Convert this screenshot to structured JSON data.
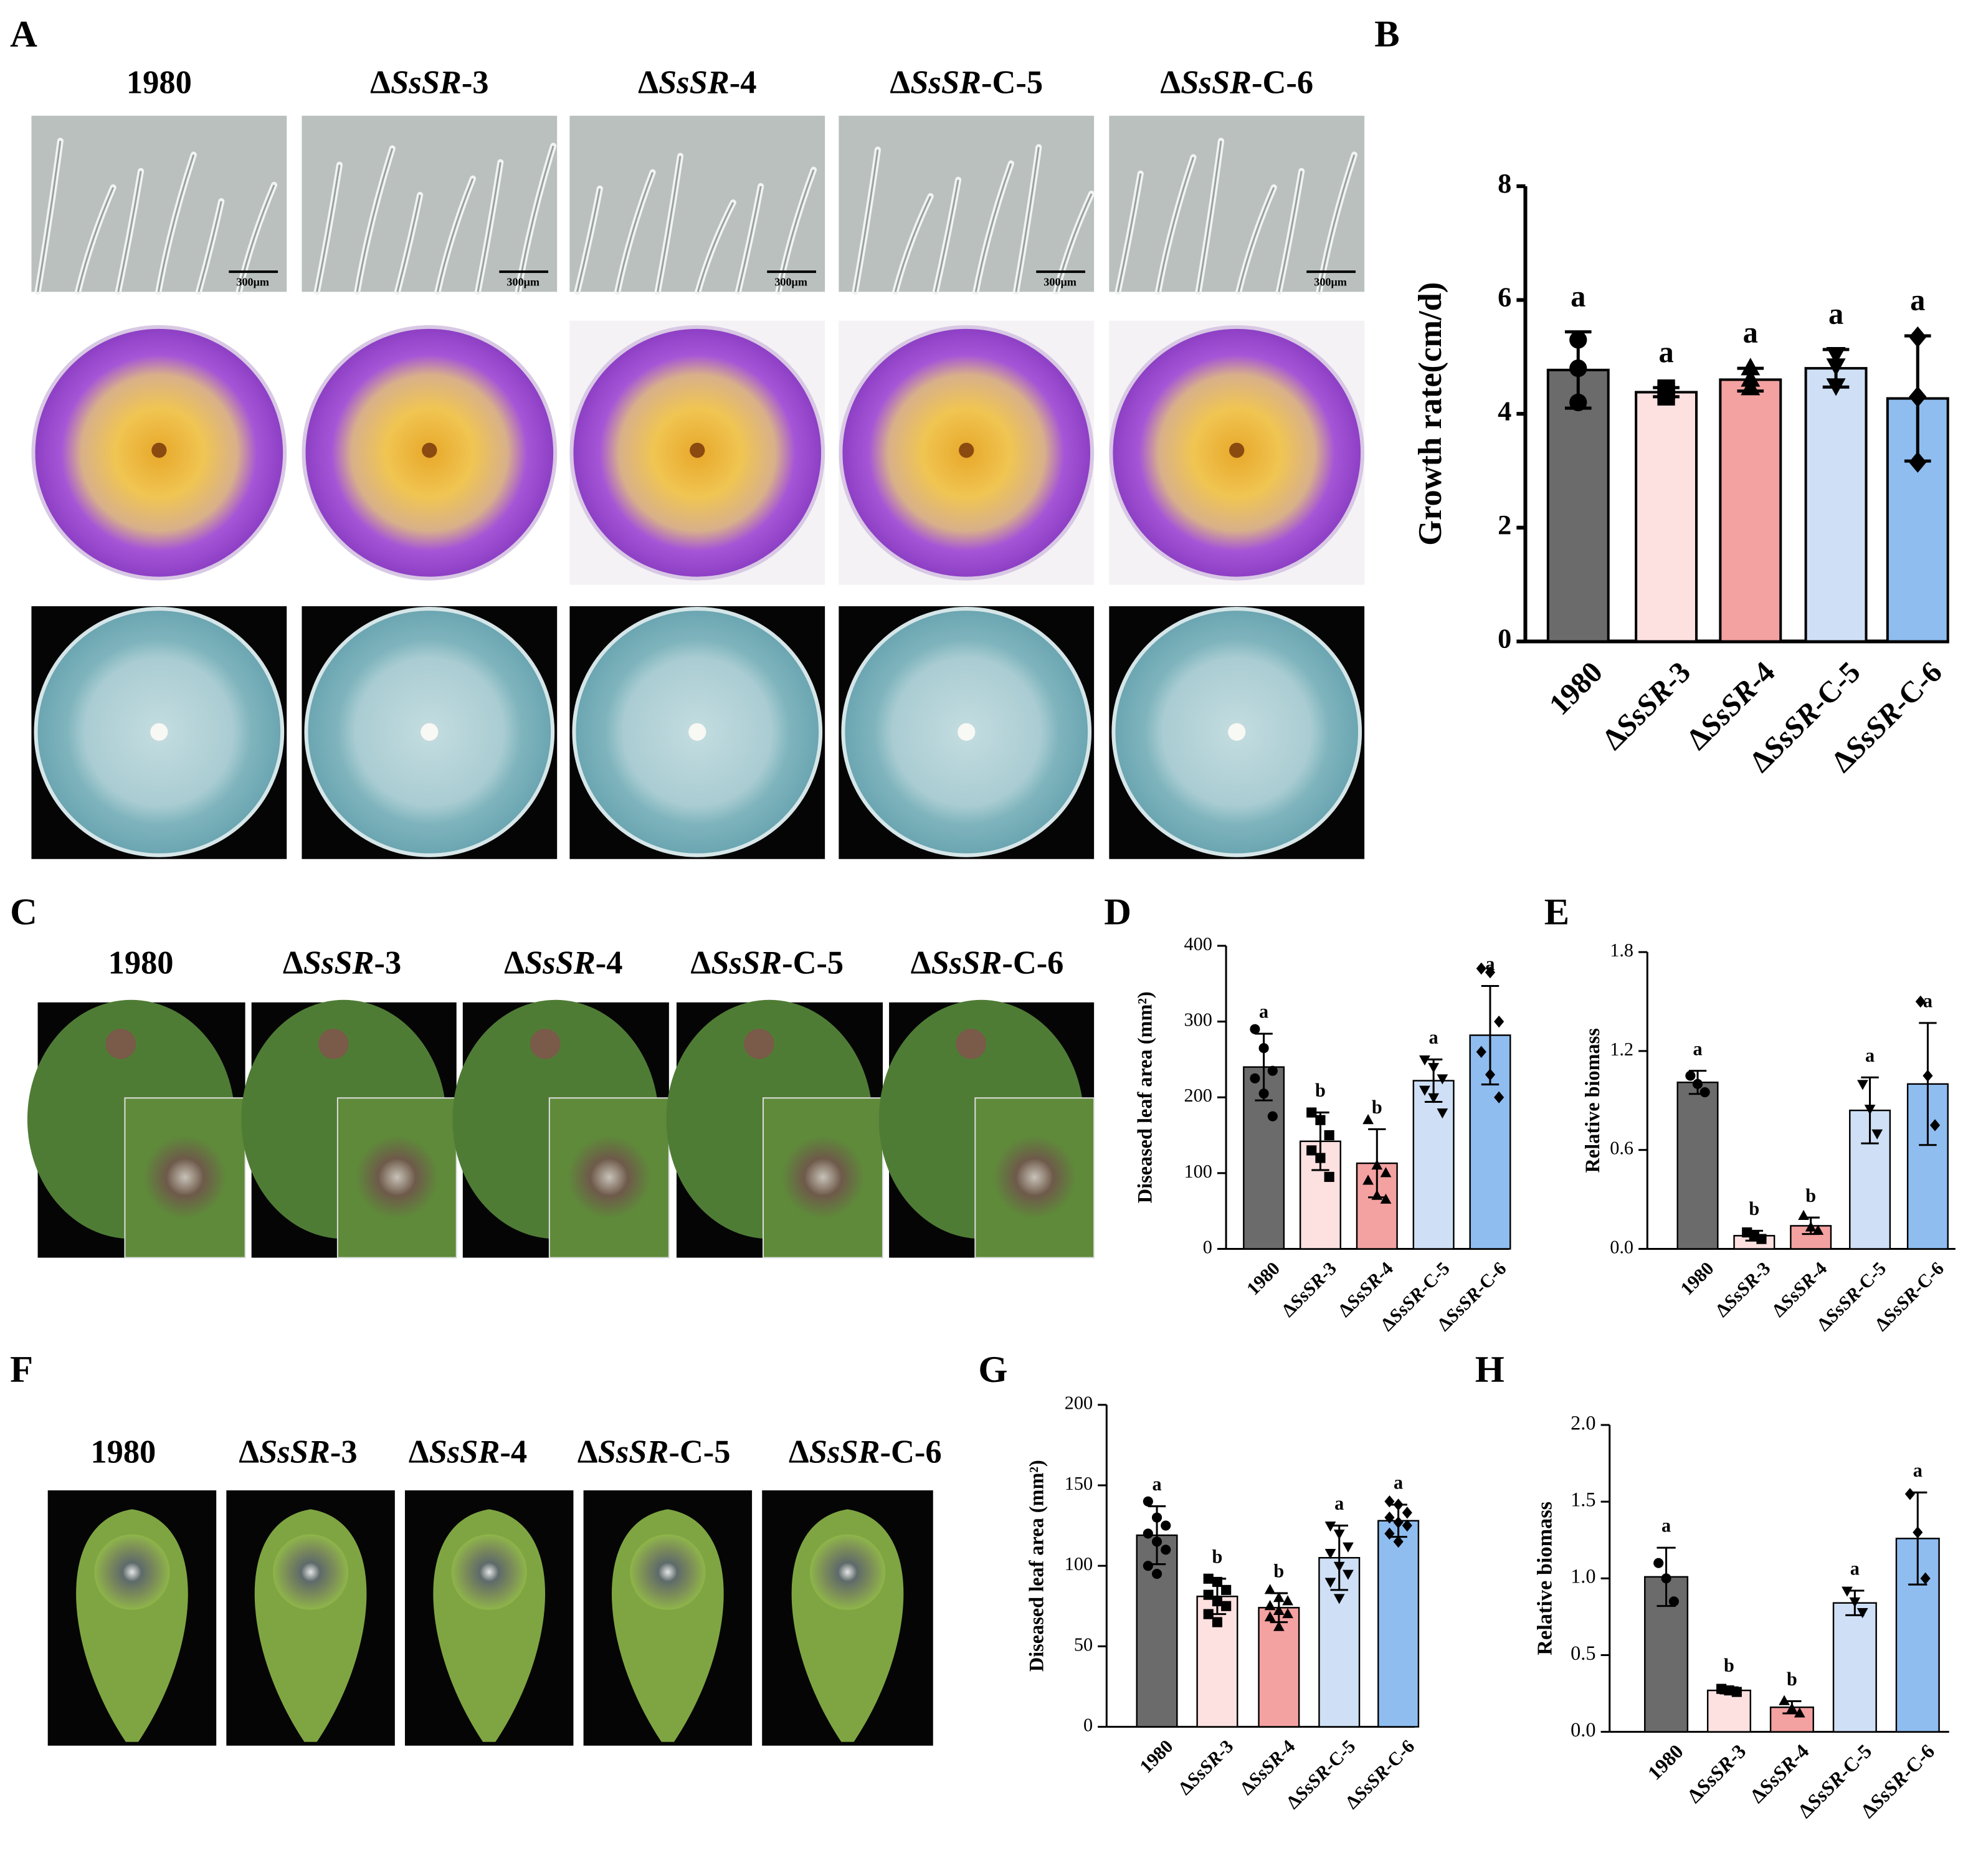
{
  "panel_labels": [
    "A",
    "B",
    "C",
    "D",
    "E",
    "F",
    "G",
    "H"
  ],
  "panel_a": {
    "strains": [
      "1980",
      "ΔSsSR-3",
      "ΔSsSR-4",
      "ΔSsSR-C-5",
      "ΔSsSR-C-6"
    ],
    "scale_bar": "300μm"
  },
  "panel_c": {
    "strains": [
      "1980",
      "ΔSsSR-3",
      "ΔSsSR-4",
      "ΔSsSR-C-5",
      "ΔSsSR-C-6"
    ]
  },
  "panel_f": {
    "strains": [
      "1980",
      "ΔSsSR-3",
      "ΔSsSR-4",
      "ΔSsSR-C-5",
      "ΔSsSR-C-6"
    ]
  },
  "chart_data": [
    {
      "type": "bar",
      "y_label": "Growth rate(cm/d)",
      "categories": [
        "1980",
        "ΔSsSR-3",
        "ΔSsSR-4",
        "ΔSsSR-C-5",
        "ΔSsSR-C-6"
      ],
      "colors": [
        "#6b6b6b",
        "#fde0e0",
        "#f4a1a1",
        "#cfe0f6",
        "#8fbdf0"
      ],
      "values": [
        4.77,
        4.38,
        4.6,
        4.8,
        4.27
      ],
      "errors": [
        0.67,
        0.08,
        0.2,
        0.33,
        1.1
      ],
      "points": [
        [
          5.3,
          4.8,
          4.2
        ],
        [
          4.3,
          4.4,
          4.45
        ],
        [
          4.8,
          4.6,
          4.45
        ],
        [
          5.05,
          4.85,
          4.5
        ],
        [
          5.35,
          4.3,
          3.15
        ]
      ],
      "letters": [
        "a",
        "a",
        "a",
        "a",
        "a"
      ],
      "ylim": [
        0,
        8
      ],
      "yticks": [
        0,
        2,
        4,
        6,
        8
      ]
    },
    {
      "type": "bar",
      "y_label": "Diseased leaf area (mm²)",
      "categories": [
        "1980",
        "ΔSsSR-3",
        "ΔSsSR-4",
        "ΔSsSR-C-5",
        "ΔSsSR-C-6"
      ],
      "colors": [
        "#6b6b6b",
        "#fde0e0",
        "#f4a1a1",
        "#cfe0f6",
        "#8fbdf0"
      ],
      "values": [
        240,
        142,
        113,
        222,
        282
      ],
      "errors": [
        44,
        38,
        45,
        28,
        65
      ],
      "points": [
        [
          290,
          265,
          235,
          225,
          205,
          175
        ],
        [
          180,
          170,
          150,
          130,
          120,
          95
        ],
        [
          170,
          110,
          100,
          90,
          70,
          65
        ],
        [
          250,
          240,
          225,
          210,
          200,
          180
        ],
        [
          370,
          365,
          300,
          260,
          230,
          200
        ]
      ],
      "letters": [
        "a",
        "b",
        "b",
        "a",
        "a"
      ],
      "ylim": [
        0,
        400
      ],
      "yticks": [
        0,
        100,
        200,
        300,
        400
      ]
    },
    {
      "type": "bar",
      "y_label": "Relative biomass",
      "categories": [
        "1980",
        "ΔSsSR-3",
        "ΔSsSR-4",
        "ΔSsSR-C-5",
        "ΔSsSR-C-6"
      ],
      "colors": [
        "#6b6b6b",
        "#fde0e0",
        "#f4a1a1",
        "#cfe0f6",
        "#8fbdf0"
      ],
      "values": [
        1.01,
        0.08,
        0.14,
        0.84,
        1.0
      ],
      "errors": [
        0.07,
        0.03,
        0.05,
        0.2,
        0.37
      ],
      "points": [
        [
          1.05,
          1.0,
          0.95
        ],
        [
          0.1,
          0.08,
          0.06
        ],
        [
          0.2,
          0.13,
          0.11
        ],
        [
          1.0,
          0.85,
          0.7
        ],
        [
          1.5,
          1.05,
          0.75
        ]
      ],
      "letters": [
        "a",
        "b",
        "b",
        "a",
        "a"
      ],
      "ylim": [
        0,
        1.8
      ],
      "yticks": [
        {
          "value": 0,
          "label": "0.0"
        },
        0.6,
        1.2,
        1.8
      ]
    },
    {
      "type": "bar",
      "y_label": "Diseased leaf area (mm²)",
      "categories": [
        "1980",
        "ΔSsSR-3",
        "ΔSsSR-4",
        "ΔSsSR-C-5",
        "ΔSsSR-C-6"
      ],
      "colors": [
        "#6b6b6b",
        "#fde0e0",
        "#f4a1a1",
        "#cfe0f6",
        "#8fbdf0"
      ],
      "values": [
        119,
        81,
        74,
        105,
        128
      ],
      "errors": [
        18,
        11,
        9,
        20,
        10
      ],
      "points": [
        [
          140,
          130,
          125,
          120,
          115,
          110,
          100,
          95
        ],
        [
          92,
          90,
          85,
          82,
          78,
          75,
          70,
          65
        ],
        [
          85,
          80,
          78,
          75,
          72,
          70,
          68,
          62
        ],
        [
          125,
          120,
          112,
          108,
          100,
          95,
          90,
          80
        ],
        [
          140,
          138,
          133,
          130,
          127,
          125,
          120,
          115
        ]
      ],
      "letters": [
        "a",
        "b",
        "b",
        "a",
        "a"
      ],
      "ylim": [
        0,
        200
      ],
      "yticks": [
        0,
        50,
        100,
        150,
        200
      ]
    },
    {
      "type": "bar",
      "y_label": "Relative biomass",
      "categories": [
        "1980",
        "ΔSsSR-3",
        "ΔSsSR-4",
        "ΔSsSR-C-5",
        "ΔSsSR-C-6"
      ],
      "colors": [
        "#6b6b6b",
        "#fde0e0",
        "#f4a1a1",
        "#cfe0f6",
        "#8fbdf0"
      ],
      "values": [
        1.01,
        0.27,
        0.16,
        0.84,
        1.26
      ],
      "errors": [
        0.19,
        0.02,
        0.04,
        0.08,
        0.3
      ],
      "points": [
        [
          1.1,
          1.0,
          0.85
        ],
        [
          0.28,
          0.27,
          0.26
        ],
        [
          0.2,
          0.15,
          0.12
        ],
        [
          0.92,
          0.85,
          0.78
        ],
        [
          1.55,
          1.3,
          1.0
        ]
      ],
      "letters": [
        "a",
        "b",
        "b",
        "a",
        "a"
      ],
      "ylim": [
        0,
        2.0
      ],
      "yticks": [
        {
          "value": 0,
          "label": "0.0"
        },
        {
          "value": 0.5,
          "label": "0.5"
        },
        {
          "value": 1.0,
          "label": "1.0"
        },
        {
          "value": 1.5,
          "label": "1.5"
        },
        {
          "value": 2.0,
          "label": "2.0"
        }
      ]
    }
  ]
}
